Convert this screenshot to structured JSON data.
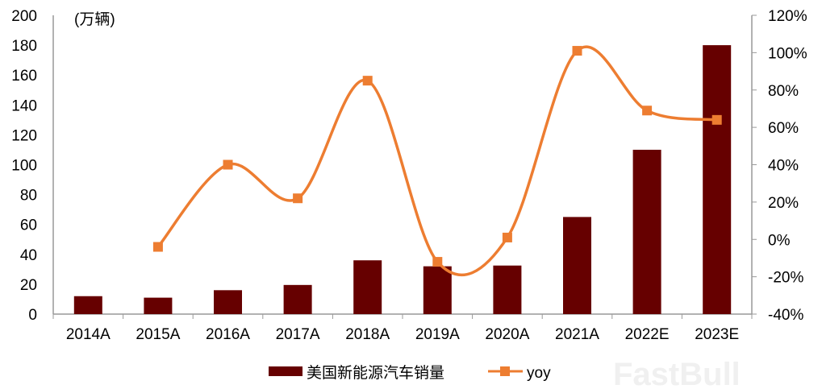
{
  "chart_data": {
    "type": "bar+line",
    "unit_label": "(万辆)",
    "categories": [
      "2014A",
      "2015A",
      "2016A",
      "2017A",
      "2018A",
      "2019A",
      "2020A",
      "2021A",
      "2022E",
      "2023E"
    ],
    "series": [
      {
        "name": "美国新能源汽车销量",
        "type": "bar",
        "axis": "left",
        "color": "#660000",
        "values": [
          12,
          11,
          16,
          19.5,
          36,
          32,
          32.5,
          65,
          110,
          180
        ]
      },
      {
        "name": "yoy",
        "type": "line",
        "axis": "right",
        "color": "#ED7D31",
        "marker": "square",
        "smooth": true,
        "values": [
          null,
          -4,
          40,
          22,
          85,
          -12,
          1,
          101,
          69,
          64
        ]
      }
    ],
    "y_left": {
      "range": [
        0,
        200
      ],
      "ticks": [
        "0",
        "20",
        "40",
        "60",
        "80",
        "100",
        "120",
        "140",
        "160",
        "180",
        "200"
      ]
    },
    "y_right": {
      "range": [
        -40,
        120
      ],
      "ticks": [
        "-40%",
        "-20%",
        "0%",
        "20%",
        "40%",
        "60%",
        "80%",
        "100%",
        "120%"
      ]
    },
    "grid": false,
    "legend_position": "bottom",
    "watermark": "FastBull"
  }
}
